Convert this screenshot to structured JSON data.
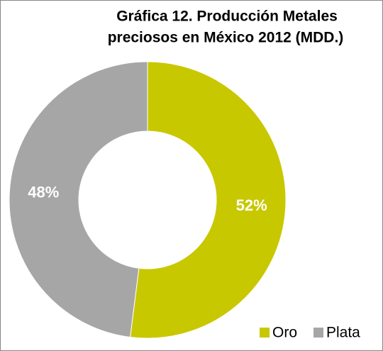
{
  "chart_data": {
    "type": "donut",
    "title": [
      "Gráfica 12. Producción Metales",
      "preciosos en México 2012 (MDD.)"
    ],
    "categories": [
      "Oro",
      "Plata"
    ],
    "values": [
      52,
      48
    ],
    "value_labels": [
      "52%",
      "48%"
    ],
    "colors": [
      "#c8c800",
      "#a6a6a6"
    ],
    "legend": "bottom-right"
  }
}
